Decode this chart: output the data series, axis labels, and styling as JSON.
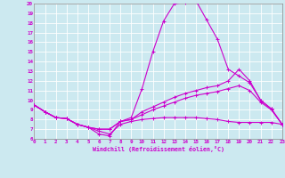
{
  "xlabel": "Windchill (Refroidissement éolien,°C)",
  "xlim": [
    0,
    23
  ],
  "ylim": [
    6,
    20
  ],
  "yticks": [
    6,
    7,
    8,
    9,
    10,
    11,
    12,
    13,
    14,
    15,
    16,
    17,
    18,
    19,
    20
  ],
  "xticks": [
    0,
    1,
    2,
    3,
    4,
    5,
    6,
    7,
    8,
    9,
    10,
    11,
    12,
    13,
    14,
    15,
    16,
    17,
    18,
    19,
    20,
    21,
    22,
    23
  ],
  "background_color": "#cce9f0",
  "grid_color": "#ffffff",
  "line_color": "#cc00cc",
  "line1_x": [
    0,
    1,
    2,
    3,
    4,
    5,
    6,
    7,
    8,
    9,
    10,
    11,
    12,
    13,
    14,
    15,
    16,
    17,
    18,
    19,
    20,
    21,
    22,
    23
  ],
  "line1_y": [
    9.5,
    8.8,
    8.2,
    8.1,
    7.5,
    7.2,
    6.5,
    6.3,
    7.8,
    8.2,
    11.2,
    15.0,
    18.2,
    20.0,
    20.1,
    20.3,
    18.3,
    16.3,
    13.2,
    12.5,
    11.8,
    10.0,
    9.1,
    7.5
  ],
  "line2_x": [
    0,
    1,
    2,
    3,
    4,
    5,
    6,
    7,
    8,
    9,
    10,
    11,
    12,
    13,
    14,
    15,
    16,
    17,
    18,
    19,
    20,
    21,
    22,
    23
  ],
  "line2_y": [
    9.5,
    8.8,
    8.2,
    8.1,
    7.5,
    7.2,
    7.0,
    7.0,
    7.8,
    8.0,
    8.8,
    9.3,
    9.8,
    10.3,
    10.7,
    11.0,
    11.3,
    11.5,
    12.0,
    13.2,
    12.0,
    10.0,
    9.1,
    7.5
  ],
  "line3_x": [
    0,
    1,
    2,
    3,
    4,
    5,
    6,
    7,
    8,
    9,
    10,
    11,
    12,
    13,
    14,
    15,
    16,
    17,
    18,
    19,
    20,
    21,
    22,
    23
  ],
  "line3_y": [
    9.5,
    8.8,
    8.2,
    8.1,
    7.5,
    7.2,
    7.0,
    7.0,
    7.8,
    8.0,
    8.5,
    9.0,
    9.4,
    9.8,
    10.2,
    10.5,
    10.7,
    10.9,
    11.2,
    11.5,
    11.0,
    9.8,
    9.0,
    7.5
  ],
  "line4_x": [
    0,
    1,
    2,
    3,
    4,
    5,
    6,
    7,
    8,
    9,
    10,
    11,
    12,
    13,
    14,
    15,
    16,
    17,
    18,
    19,
    20,
    21,
    22,
    23
  ],
  "line4_y": [
    9.5,
    8.8,
    8.2,
    8.1,
    7.5,
    7.2,
    6.8,
    6.5,
    7.5,
    7.8,
    8.0,
    8.1,
    8.2,
    8.2,
    8.2,
    8.2,
    8.1,
    8.0,
    7.8,
    7.7,
    7.7,
    7.7,
    7.7,
    7.5
  ]
}
